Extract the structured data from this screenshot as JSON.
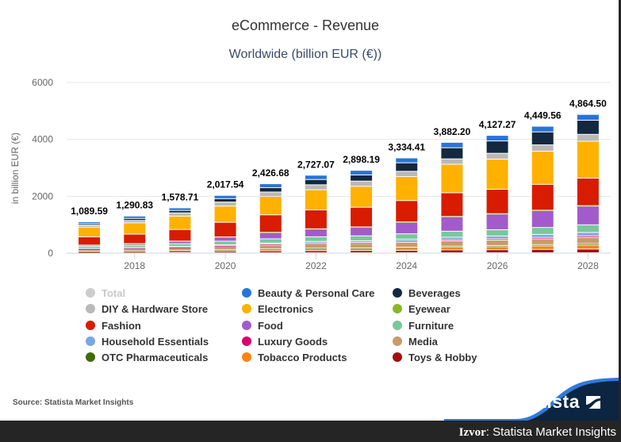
{
  "header": {
    "title": "eCommerce - Revenue",
    "subtitle": "Worldwide (billion EUR (€))"
  },
  "chart_data": {
    "type": "bar",
    "stacked": true,
    "title": "eCommerce - Revenue",
    "subtitle": "Worldwide (billion EUR (€))",
    "xlabel": "",
    "ylabel": "in billion EUR (€)",
    "ylim": [
      0,
      6000
    ],
    "yticks": [
      0,
      2000,
      4000,
      6000
    ],
    "xtick_labels": [
      "2018",
      "2020",
      "2022",
      "2024",
      "2026",
      "2028"
    ],
    "categories": [
      "2017",
      "2018",
      "2019",
      "2020",
      "2021",
      "2022",
      "2023",
      "2024",
      "2025",
      "2026",
      "2027",
      "2028"
    ],
    "totals": [
      1089.59,
      1290.83,
      1578.71,
      2017.54,
      2426.68,
      2727.07,
      2898.19,
      3334.41,
      3882.2,
      4127.27,
      4449.56,
      4864.5
    ],
    "total_labels": [
      "1,089.59",
      "1,290.83",
      "1,578.71",
      "2,017.54",
      "2,426.68",
      "2,727.07",
      "2,898.19",
      "3,334.41",
      "3,882.20",
      "4,127.27",
      "4,449.56",
      "4,864.50"
    ],
    "grid": true,
    "legend_position": "bottom",
    "series": [
      {
        "name": "Toys & Hobby",
        "color": "#a50d0d",
        "values": [
          30,
          35,
          40,
          50,
          60,
          65,
          70,
          80,
          95,
          100,
          110,
          120
        ]
      },
      {
        "name": "Tobacco Products",
        "color": "#fa8410",
        "values": [
          15,
          18,
          25,
          35,
          45,
          60,
          65,
          75,
          90,
          100,
          115,
          130
        ]
      },
      {
        "name": "OTC Pharmaceuticals",
        "color": "#3f6b0a",
        "values": [
          5,
          6,
          8,
          12,
          15,
          20,
          22,
          28,
          35,
          40,
          45,
          50
        ]
      },
      {
        "name": "Media",
        "color": "#c89a6a",
        "values": [
          75,
          85,
          95,
          110,
          125,
          140,
          145,
          160,
          175,
          180,
          190,
          200
        ]
      },
      {
        "name": "Luxury Goods",
        "color": "#d8006f",
        "values": [
          10,
          12,
          15,
          20,
          25,
          30,
          32,
          38,
          42,
          45,
          48,
          50
        ]
      },
      {
        "name": "Household Essentials",
        "color": "#7aa6e2",
        "values": [
          15,
          18,
          22,
          30,
          40,
          50,
          55,
          65,
          80,
          90,
          100,
          110
        ]
      },
      {
        "name": "Furniture",
        "color": "#78c89a",
        "values": [
          65,
          75,
          90,
          115,
          135,
          150,
          160,
          175,
          200,
          210,
          230,
          250
        ]
      },
      {
        "name": "Food",
        "color": "#a35bcc",
        "values": [
          40,
          55,
          80,
          130,
          200,
          250,
          280,
          380,
          480,
          520,
          560,
          610
        ]
      },
      {
        "name": "Eyewear",
        "color": "#8ab82a",
        "values": [
          3,
          4,
          5,
          6,
          7,
          8,
          9,
          10,
          11,
          12,
          13,
          14
        ]
      },
      {
        "name": "Fashion",
        "color": "#d81c00",
        "values": [
          280,
          320,
          380,
          470,
          560,
          610,
          640,
          700,
          790,
          810,
          860,
          900
        ]
      },
      {
        "name": "Electronics",
        "color": "#ffb100",
        "values": [
          330,
          380,
          440,
          520,
          590,
          650,
          680,
          790,
          950,
          1000,
          1100,
          1200
        ]
      },
      {
        "name": "DIY & Hardware Store",
        "color": "#b9b9b9",
        "values": [
          70,
          80,
          105,
          130,
          140,
          160,
          170,
          170,
          180,
          195,
          210,
          225
        ]
      },
      {
        "name": "Beverages",
        "color": "#142840",
        "values": [
          50,
          70,
          80,
          110,
          140,
          170,
          200,
          280,
          370,
          410,
          430,
          460
        ]
      },
      {
        "name": "Beauty & Personal Care",
        "color": "#2775d9",
        "values": [
          60,
          80,
          85,
          105,
          125,
          140,
          150,
          160,
          180,
          185,
          190,
          190
        ]
      }
    ]
  },
  "legend": {
    "items": [
      {
        "label": "Total",
        "color": "#cccccc",
        "hidden": true
      },
      {
        "label": "Beauty & Personal Care",
        "color": "#2775d9"
      },
      {
        "label": "Beverages",
        "color": "#142840"
      },
      {
        "label": "DIY & Hardware Store",
        "color": "#b9b9b9"
      },
      {
        "label": "Electronics",
        "color": "#ffb100"
      },
      {
        "label": "Eyewear",
        "color": "#8ab82a"
      },
      {
        "label": "Fashion",
        "color": "#d81c00"
      },
      {
        "label": "Food",
        "color": "#a35bcc"
      },
      {
        "label": "Furniture",
        "color": "#78c89a"
      },
      {
        "label": "Household Essentials",
        "color": "#7aa6e2"
      },
      {
        "label": "Luxury Goods",
        "color": "#d8006f"
      },
      {
        "label": "Media",
        "color": "#c89a6a"
      },
      {
        "label": "OTC Pharmaceuticals",
        "color": "#3f6b0a"
      },
      {
        "label": "Tobacco Products",
        "color": "#fa8410"
      },
      {
        "label": "Toys & Hobby",
        "color": "#a50d0d"
      }
    ]
  },
  "footer": {
    "source": "Source: Statista Market Insights",
    "logo": "statista",
    "caption_bold": "Izvor",
    "caption_rest": ": Statista Market Insights"
  }
}
